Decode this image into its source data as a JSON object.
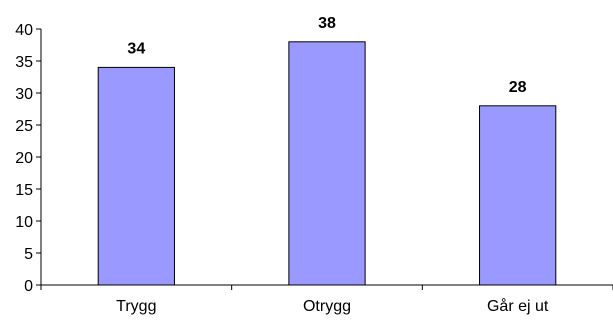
{
  "chart_data": {
    "type": "bar",
    "title": "",
    "xlabel": "",
    "ylabel": "",
    "categories": [
      "Trygg",
      "Otrygg",
      "Går ej ut"
    ],
    "values": [
      34,
      38,
      28
    ],
    "data_labels": [
      "34",
      "38",
      "28"
    ],
    "ylim": [
      0,
      40
    ],
    "yticks": [
      0,
      5,
      10,
      15,
      20,
      25,
      30,
      35,
      40
    ],
    "grid": false,
    "legend": "none",
    "colors": {
      "bar_fill": "#9999ff",
      "bar_stroke": "#000000"
    }
  }
}
